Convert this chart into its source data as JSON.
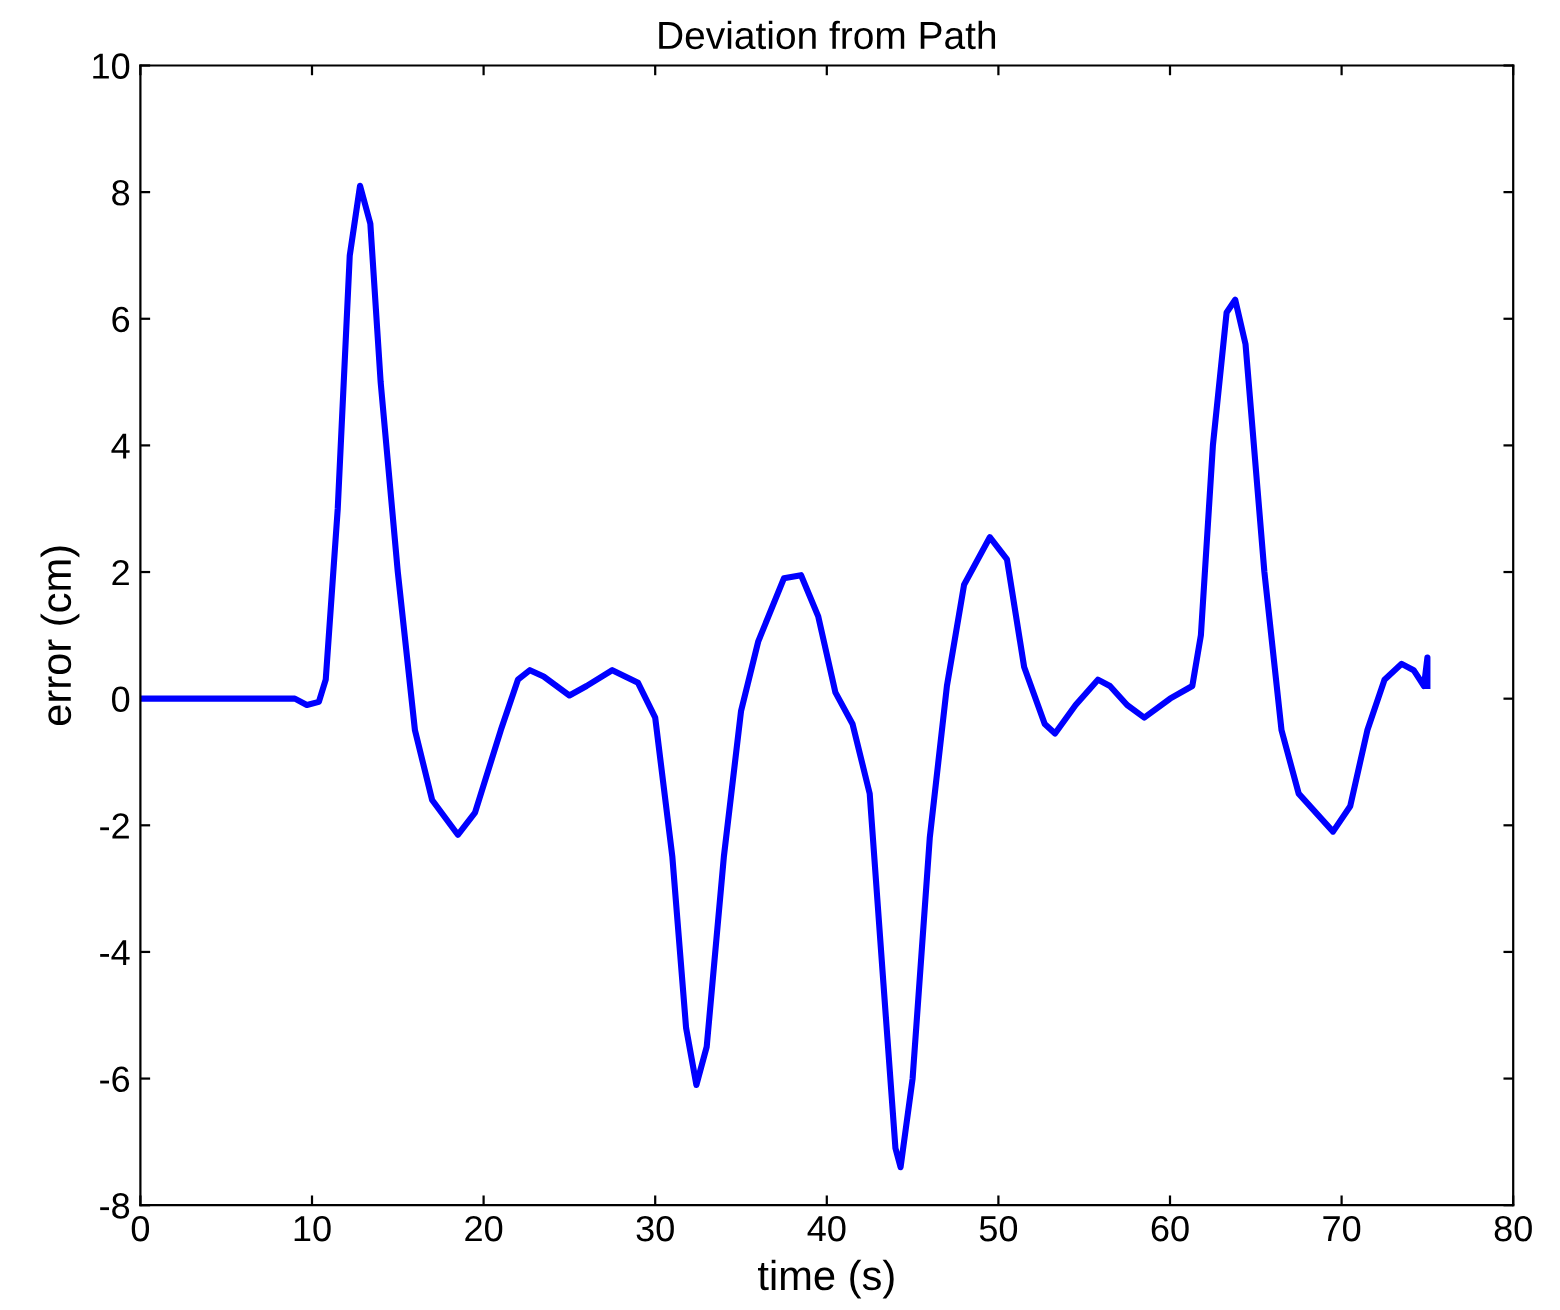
{
  "chart_data": {
    "type": "line",
    "title": "Deviation from Path",
    "xlabel": "time (s)",
    "ylabel": "error (cm)",
    "xlim": [
      0,
      80
    ],
    "xticks": [
      0,
      10,
      20,
      30,
      40,
      50,
      60,
      70,
      80
    ],
    "ylim": [
      -8,
      10
    ],
    "yticks": [
      -8,
      -6,
      -4,
      -2,
      0,
      2,
      4,
      6,
      8,
      10
    ],
    "grid": false,
    "marker": "none",
    "line_style": "solid",
    "series": [
      {
        "color": "#0000ff",
        "x": [
          0,
          9,
          9.7,
          10.4,
          10.8,
          11.5,
          12.2,
          12.8,
          13.4,
          14,
          15,
          16,
          17,
          18.5,
          19.5,
          21,
          22,
          22.7,
          23.5,
          25,
          26,
          27.5,
          29,
          30,
          31,
          31.8,
          32.4,
          33,
          34,
          35,
          36,
          37.5,
          38.5,
          39.5,
          40.5,
          41.5,
          42.5,
          43.3,
          44,
          44.3,
          45,
          46,
          47,
          48,
          49.5,
          50.5,
          51.5,
          52.7,
          53.3,
          54.5,
          55.8,
          56.5,
          57.5,
          58.5,
          60,
          61.3,
          61.8,
          62.5,
          63.3,
          63.8,
          64.4,
          65.5,
          66.5,
          67.5,
          69.5,
          70.5,
          71.5,
          72.5,
          73.5,
          74.2,
          74.8,
          75,
          75
        ],
        "values": [
          0,
          0,
          -0.1,
          -0.05,
          0.3,
          3,
          7,
          8.1,
          7.5,
          5,
          2,
          -0.5,
          -1.6,
          -2.15,
          -1.8,
          -0.5,
          0.3,
          0.45,
          0.35,
          0.05,
          0.2,
          0.45,
          0.25,
          -0.3,
          -2.5,
          -5.2,
          -6.1,
          -5.5,
          -2.5,
          -0.2,
          0.9,
          1.9,
          1.95,
          1.3,
          0.1,
          -0.4,
          -1.5,
          -4.5,
          -7.1,
          -7.4,
          -6,
          -2.2,
          0.2,
          1.8,
          2.55,
          2.2,
          0.5,
          -0.4,
          -0.55,
          -0.1,
          0.3,
          0.2,
          -0.1,
          -0.3,
          0,
          0.2,
          1,
          4,
          6.1,
          6.3,
          5.6,
          2,
          -0.5,
          -1.5,
          -2.1,
          -1.7,
          -0.5,
          0.3,
          0.55,
          0.45,
          0.2,
          0.65,
          0.2
        ]
      }
    ]
  }
}
